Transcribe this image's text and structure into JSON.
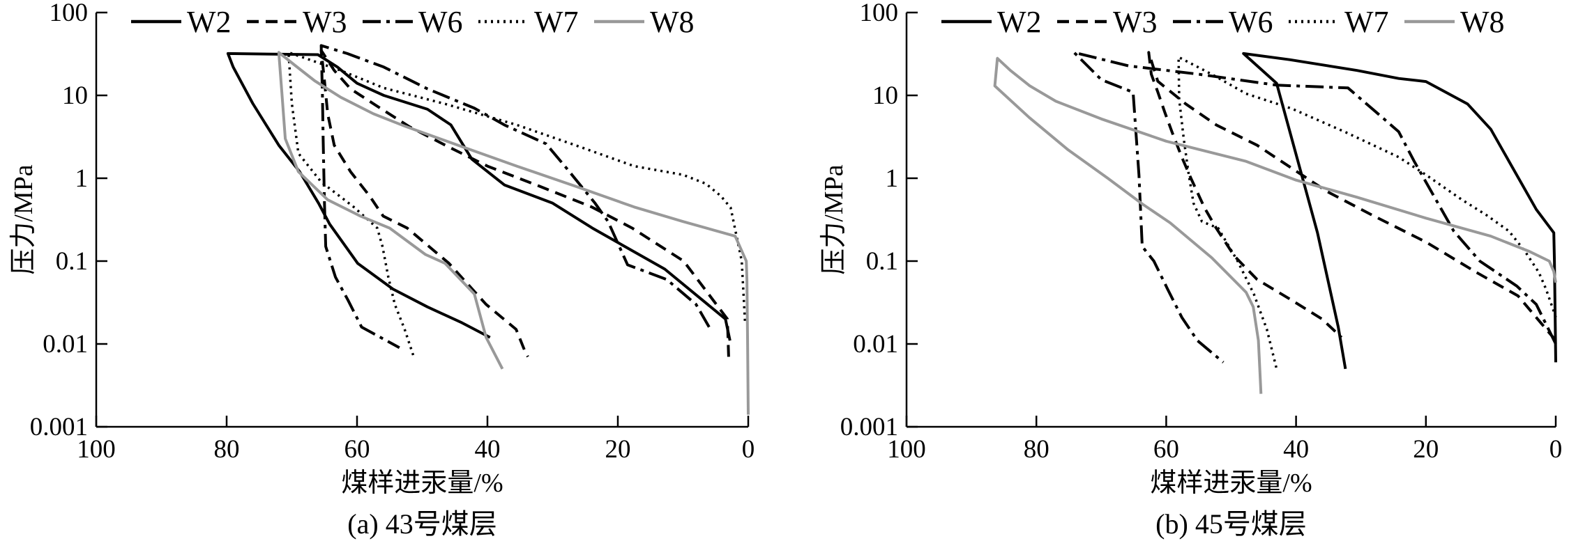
{
  "figure": {
    "description": "Mercury intrusion-extrusion curves for coal samples, two panels",
    "background": "#ffffff",
    "text_color": "#000000",
    "gray_series_color": "#999999"
  },
  "legend": [
    {
      "label": "W2",
      "style": "solid",
      "color": "#000000"
    },
    {
      "label": "W3",
      "style": "dashed",
      "color": "#000000"
    },
    {
      "label": "W6",
      "style": "dashdot",
      "color": "#000000"
    },
    {
      "label": "W7",
      "style": "dotted",
      "color": "#000000"
    },
    {
      "label": "W8",
      "style": "solid",
      "color": "#999999"
    }
  ],
  "chart_data": [
    {
      "panel": "a",
      "type": "line",
      "caption": "(a) 43号煤层",
      "xlabel": "煤样进汞量/%",
      "ylabel": "压力/MPa",
      "x_axis": {
        "ticks": [
          100,
          80,
          60,
          40,
          20,
          0
        ],
        "reversed": true,
        "range": [
          100,
          0
        ]
      },
      "y_axis": {
        "scale": "log",
        "ticks": [
          100,
          10,
          1,
          0.1,
          0.01,
          0.001
        ],
        "range": [
          0.001,
          100
        ]
      },
      "grid": false,
      "legend_position": "top",
      "series": [
        {
          "name": "W2",
          "style": "solid",
          "color": "#000000",
          "points": [
            [
              2.8,
              0.011
            ],
            [
              3.5,
              0.02
            ],
            [
              12.8,
              0.08
            ],
            [
              23.9,
              0.25
            ],
            [
              30,
              0.5
            ],
            [
              37.4,
              0.83
            ],
            [
              42.4,
              1.7
            ],
            [
              45.6,
              4.4
            ],
            [
              49.2,
              6.8
            ],
            [
              55.9,
              10
            ],
            [
              60,
              14
            ],
            [
              63,
              22
            ],
            [
              66,
              31
            ],
            [
              79.8,
              32
            ],
            [
              79,
              22
            ],
            [
              76,
              8
            ],
            [
              72,
              2.5
            ],
            [
              68.8,
              1.2
            ],
            [
              65.9,
              0.5
            ],
            [
              64.2,
              0.28
            ],
            [
              59.9,
              0.094
            ],
            [
              54.5,
              0.046
            ],
            [
              49.2,
              0.028
            ],
            [
              43.9,
              0.018
            ],
            [
              39.6,
              0.012
            ]
          ]
        },
        {
          "name": "W3",
          "style": "dashed",
          "color": "#000000",
          "points": [
            [
              3,
              0.007
            ],
            [
              3.2,
              0.02
            ],
            [
              9.9,
              0.1
            ],
            [
              17.8,
              0.25
            ],
            [
              24,
              0.45
            ],
            [
              32,
              0.8
            ],
            [
              40,
              1.4
            ],
            [
              46,
              2.4
            ],
            [
              52,
              4.2
            ],
            [
              57,
              7.5
            ],
            [
              61,
              12
            ],
            [
              63.5,
              20
            ],
            [
              65.5,
              35
            ],
            [
              65,
              15
            ],
            [
              64.5,
              6
            ],
            [
              63.5,
              2.5
            ],
            [
              61,
              1.2
            ],
            [
              58,
              0.6
            ],
            [
              56,
              0.35
            ],
            [
              52.3,
              0.25
            ],
            [
              45.9,
              0.094
            ],
            [
              40.2,
              0.03
            ],
            [
              35.6,
              0.015
            ],
            [
              34.2,
              0.008
            ],
            [
              33.8,
              0.007
            ]
          ]
        },
        {
          "name": "W6",
          "style": "dashdot",
          "color": "#000000",
          "points": [
            [
              6,
              0.016
            ],
            [
              8,
              0.03
            ],
            [
              12.5,
              0.06
            ],
            [
              18.5,
              0.09
            ],
            [
              21.5,
              0.3
            ],
            [
              23.5,
              0.5
            ],
            [
              27.8,
              1.3
            ],
            [
              31,
              2.6
            ],
            [
              37.4,
              4.4
            ],
            [
              42,
              7
            ],
            [
              49.2,
              12
            ],
            [
              55.9,
              22
            ],
            [
              61.5,
              32
            ],
            [
              65.5,
              40
            ],
            [
              65.3,
              10
            ],
            [
              65.2,
              3
            ],
            [
              65,
              0.5
            ],
            [
              64.8,
              0.15
            ],
            [
              63.3,
              0.064
            ],
            [
              61.4,
              0.034
            ],
            [
              59.3,
              0.016
            ],
            [
              53.5,
              0.009
            ]
          ]
        },
        {
          "name": "W7",
          "style": "dotted",
          "color": "#000000",
          "points": [
            [
              0.5,
              0.019
            ],
            [
              1,
              0.1
            ],
            [
              2.7,
              0.44
            ],
            [
              4.2,
              0.61
            ],
            [
              6.5,
              0.86
            ],
            [
              10,
              1.1
            ],
            [
              17.5,
              1.4
            ],
            [
              26.5,
              2.5
            ],
            [
              35.5,
              4.4
            ],
            [
              46.5,
              7.9
            ],
            [
              55.9,
              12.3
            ],
            [
              62.5,
              20
            ],
            [
              70.5,
              33
            ],
            [
              70,
              8
            ],
            [
              69,
              2
            ],
            [
              65.5,
              0.9
            ],
            [
              60.5,
              0.45
            ],
            [
              56.9,
              0.25
            ],
            [
              56.1,
              0.15
            ],
            [
              55.2,
              0.064
            ],
            [
              54.2,
              0.03
            ],
            [
              52.7,
              0.015
            ],
            [
              51.3,
              0.007
            ]
          ]
        },
        {
          "name": "W8",
          "style": "solid",
          "color": "#999999",
          "points": [
            [
              0,
              0.0014
            ],
            [
              0.1,
              0.01
            ],
            [
              0.2,
              0.06
            ],
            [
              0.3,
              0.1
            ],
            [
              2,
              0.2
            ],
            [
              10,
              0.3
            ],
            [
              17.5,
              0.45
            ],
            [
              26.5,
              0.8
            ],
            [
              35.5,
              1.4
            ],
            [
              44.5,
              2.5
            ],
            [
              52.5,
              4.2
            ],
            [
              57.5,
              6
            ],
            [
              62.5,
              9.5
            ],
            [
              66.5,
              15
            ],
            [
              69.5,
              23
            ],
            [
              72,
              33
            ],
            [
              71.5,
              10
            ],
            [
              71,
              3
            ],
            [
              69,
              1.2
            ],
            [
              64.5,
              0.55
            ],
            [
              59.5,
              0.35
            ],
            [
              55,
              0.25
            ],
            [
              49.5,
              0.12
            ],
            [
              46.5,
              0.094
            ],
            [
              42,
              0.04
            ],
            [
              40.2,
              0.012
            ],
            [
              37.7,
              0.005
            ]
          ]
        }
      ]
    },
    {
      "panel": "b",
      "type": "line",
      "caption": "(b) 45号煤层",
      "xlabel": "煤样进汞量/%",
      "ylabel": "压力/MPa",
      "x_axis": {
        "ticks": [
          100,
          80,
          60,
          40,
          20,
          0
        ],
        "reversed": true,
        "range": [
          100,
          0
        ]
      },
      "y_axis": {
        "scale": "log",
        "ticks": [
          100,
          10,
          1,
          0.1,
          0.01,
          0.001
        ],
        "range": [
          0.001,
          100
        ]
      },
      "grid": false,
      "legend_position": "top",
      "series": [
        {
          "name": "W2",
          "style": "solid",
          "color": "#000000",
          "points": [
            [
              0,
              0.006
            ],
            [
              0.2,
              0.1
            ],
            [
              0.3,
              0.22
            ],
            [
              3,
              0.42
            ],
            [
              7,
              1.5
            ],
            [
              10,
              3.9
            ],
            [
              13.6,
              7.9
            ],
            [
              20,
              14.7
            ],
            [
              24.2,
              16
            ],
            [
              30.6,
              20
            ],
            [
              41,
              27
            ],
            [
              48.1,
              32
            ],
            [
              43,
              14
            ],
            [
              39.2,
              1.15
            ],
            [
              36.7,
              0.22
            ],
            [
              33.5,
              0.016
            ],
            [
              32.4,
              0.005
            ]
          ]
        },
        {
          "name": "W3",
          "style": "dashed",
          "color": "#000000",
          "points": [
            [
              0,
              0.011
            ],
            [
              5.8,
              0.038
            ],
            [
              12.2,
              0.073
            ],
            [
              20,
              0.17
            ],
            [
              28,
              0.35
            ],
            [
              35.2,
              0.69
            ],
            [
              39.5,
              1.15
            ],
            [
              46,
              2.5
            ],
            [
              52.3,
              4.4
            ],
            [
              57,
              7.9
            ],
            [
              61.3,
              14.8
            ],
            [
              62.7,
              33
            ],
            [
              62.3,
              18
            ],
            [
              61.3,
              11
            ],
            [
              60.2,
              6.2
            ],
            [
              59.1,
              3.6
            ],
            [
              57.6,
              1.8
            ],
            [
              56.2,
              1.0
            ],
            [
              54.1,
              0.44
            ],
            [
              52.3,
              0.25
            ],
            [
              49.5,
              0.115
            ],
            [
              46,
              0.06
            ],
            [
              41,
              0.035
            ],
            [
              36,
              0.02
            ],
            [
              33,
              0.012
            ]
          ]
        },
        {
          "name": "W6",
          "style": "dashdot",
          "color": "#000000",
          "points": [
            [
              0,
              0.01
            ],
            [
              3,
              0.03
            ],
            [
              6,
              0.05
            ],
            [
              11.7,
              0.1
            ],
            [
              15.7,
              0.23
            ],
            [
              21.8,
              1.6
            ],
            [
              24.2,
              3.65
            ],
            [
              26.7,
              5.4
            ],
            [
              32,
              12.3
            ],
            [
              43,
              13.3
            ],
            [
              55,
              18
            ],
            [
              65.8,
              22.7
            ],
            [
              74.2,
              33
            ],
            [
              70,
              15.5
            ],
            [
              65.1,
              10.9
            ],
            [
              64.2,
              1.1
            ],
            [
              63.7,
              0.15
            ],
            [
              61.9,
              0.1
            ],
            [
              59.8,
              0.046
            ],
            [
              57.6,
              0.021
            ],
            [
              55.2,
              0.011
            ],
            [
              51.2,
              0.006
            ]
          ]
        },
        {
          "name": "W7",
          "style": "dotted",
          "color": "#000000",
          "points": [
            [
              0,
              0.021
            ],
            [
              0.4,
              0.026
            ],
            [
              1.5,
              0.046
            ],
            [
              2.6,
              0.073
            ],
            [
              4.7,
              0.13
            ],
            [
              7.2,
              0.23
            ],
            [
              10.7,
              0.36
            ],
            [
              14.6,
              0.56
            ],
            [
              20,
              1.1
            ],
            [
              24.2,
              1.8
            ],
            [
              32.4,
              3.6
            ],
            [
              40.6,
              6.9
            ],
            [
              47.7,
              10.5
            ],
            [
              53,
              18
            ],
            [
              58.1,
              29
            ],
            [
              58,
              9
            ],
            [
              57.3,
              3
            ],
            [
              56.6,
              1.2
            ],
            [
              55.8,
              0.5
            ],
            [
              54.5,
              0.3
            ],
            [
              52,
              0.25
            ],
            [
              49,
              0.1
            ],
            [
              46.5,
              0.04
            ],
            [
              44.5,
              0.015
            ],
            [
              43,
              0.005
            ]
          ]
        },
        {
          "name": "W8",
          "style": "solid",
          "color": "#999999",
          "points": [
            [
              0,
              0.055
            ],
            [
              0.3,
              0.075
            ],
            [
              1,
              0.1
            ],
            [
              4,
              0.13
            ],
            [
              10,
              0.2
            ],
            [
              20,
              0.33
            ],
            [
              30.6,
              0.59
            ],
            [
              40,
              0.95
            ],
            [
              47.7,
              1.6
            ],
            [
              60,
              2.8
            ],
            [
              70,
              5.2
            ],
            [
              77,
              8.5
            ],
            [
              81,
              13
            ],
            [
              84,
              20
            ],
            [
              86,
              28
            ],
            [
              86.4,
              13
            ],
            [
              81.1,
              5.4
            ],
            [
              75.1,
              2.2
            ],
            [
              69,
              1.0
            ],
            [
              63.7,
              0.49
            ],
            [
              59.4,
              0.29
            ],
            [
              53,
              0.11
            ],
            [
              47.7,
              0.042
            ],
            [
              46.6,
              0.028
            ],
            [
              45.8,
              0.011
            ],
            [
              45.4,
              0.0025
            ]
          ]
        }
      ]
    }
  ]
}
